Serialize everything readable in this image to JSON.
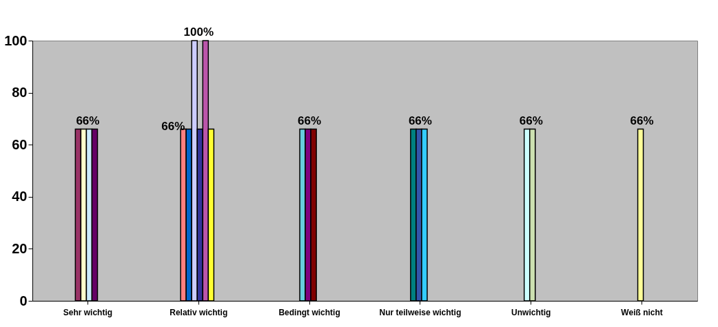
{
  "chart_data": {
    "type": "bar",
    "categories": [
      "Sehr wichtig",
      "Relativ wichtig",
      "Bedingt wichtig",
      "Nur teilweise wichtig",
      "Unwichtig",
      "Weiß nicht"
    ],
    "series": [
      {
        "color": "#993366",
        "values": [
          66,
          null,
          null,
          null,
          null,
          null
        ]
      },
      {
        "color": "#ffffcc",
        "values": [
          66,
          null,
          null,
          null,
          null,
          null
        ]
      },
      {
        "color": "#ccecff",
        "values": [
          66,
          null,
          null,
          null,
          null,
          null
        ]
      },
      {
        "color": "#660066",
        "values": [
          66,
          null,
          null,
          null,
          null,
          null
        ]
      },
      {
        "color": "#ff8080",
        "values": [
          null,
          66,
          null,
          null,
          null,
          null
        ]
      },
      {
        "color": "#0066cc",
        "values": [
          null,
          66,
          null,
          null,
          null,
          null
        ]
      },
      {
        "color": "#ccccff",
        "values": [
          null,
          100,
          null,
          null,
          null,
          null
        ]
      },
      {
        "color": "#333399",
        "values": [
          null,
          66,
          null,
          null,
          null,
          null
        ]
      },
      {
        "color": "#bb55aa",
        "values": [
          null,
          100,
          null,
          null,
          null,
          null
        ]
      },
      {
        "color": "#ffff33",
        "values": [
          null,
          66,
          null,
          null,
          null,
          null
        ]
      },
      {
        "color": "#66ccdd",
        "values": [
          null,
          null,
          66,
          null,
          null,
          null
        ]
      },
      {
        "color": "#800080",
        "values": [
          null,
          null,
          66,
          null,
          null,
          null
        ]
      },
      {
        "color": "#800000",
        "values": [
          null,
          null,
          66,
          null,
          null,
          null
        ]
      },
      {
        "color": "#008080",
        "values": [
          null,
          null,
          null,
          66,
          null,
          null
        ]
      },
      {
        "color": "#3355aa",
        "values": [
          null,
          null,
          null,
          66,
          null,
          null
        ]
      },
      {
        "color": "#33ccff",
        "values": [
          null,
          null,
          null,
          66,
          null,
          null
        ]
      },
      {
        "color": "#ccffff",
        "values": [
          null,
          null,
          null,
          null,
          66,
          null
        ]
      },
      {
        "color": "#cce0b0",
        "values": [
          null,
          null,
          null,
          null,
          66,
          null
        ]
      },
      {
        "color": "#ffff99",
        "values": [
          null,
          null,
          null,
          null,
          null,
          66
        ]
      }
    ],
    "ylim": [
      0,
      100
    ],
    "yticks": [
      0,
      20,
      40,
      60,
      80,
      100
    ],
    "grid": false,
    "legend": false,
    "annotations": [
      {
        "text": "66%",
        "x": "Sehr wichtig",
        "y": 66
      },
      {
        "text": "66%",
        "x": "Relativ wichtig",
        "y": 66
      },
      {
        "text": "100%",
        "x": "Relativ wichtig",
        "y": 100
      },
      {
        "text": "66%",
        "x": "Bedingt wichtig",
        "y": 66
      },
      {
        "text": "66%",
        "x": "Nur teilweise wichtig",
        "y": 66
      },
      {
        "text": "66%",
        "x": "Unwichtig",
        "y": 66
      },
      {
        "text": "66%",
        "x": "Weiß nicht",
        "y": 66
      }
    ]
  }
}
